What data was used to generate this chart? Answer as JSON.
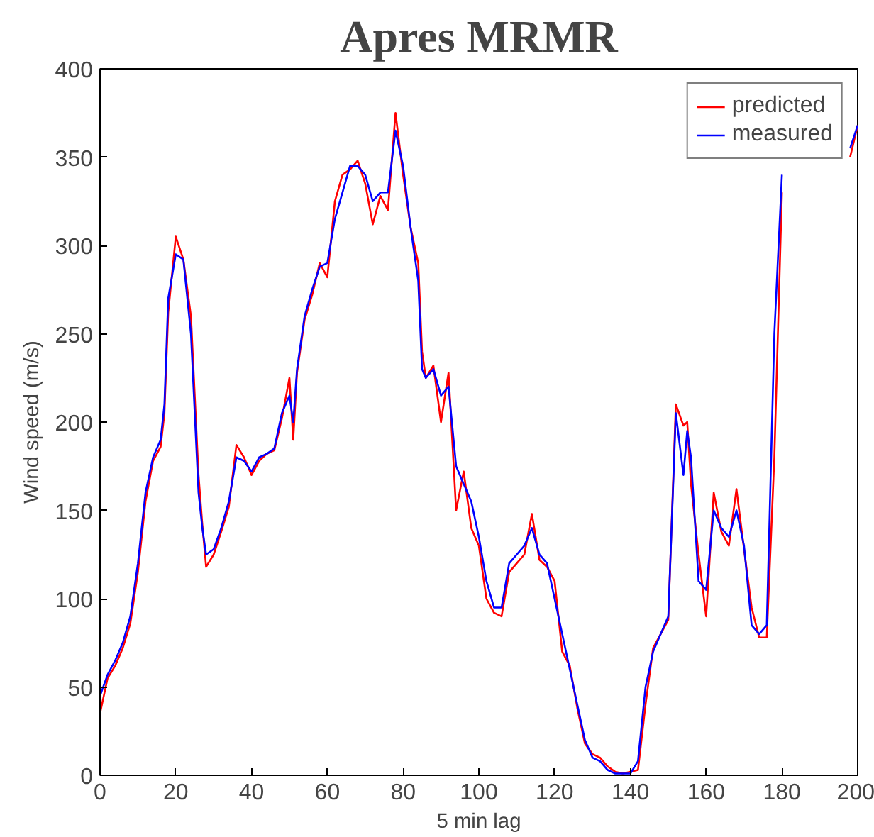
{
  "chart_data": {
    "type": "line",
    "title": "Apres MRMR",
    "xlabel": "5 min lag",
    "ylabel": "Wind speed (m/s)",
    "x": [
      0,
      2,
      4,
      6,
      8,
      10,
      12,
      14,
      16,
      17,
      18,
      20,
      22,
      24,
      26,
      27,
      28,
      30,
      32,
      34,
      36,
      38,
      40,
      42,
      44,
      46,
      48,
      50,
      51,
      52,
      54,
      56,
      58,
      60,
      62,
      64,
      66,
      68,
      70,
      72,
      74,
      76,
      78,
      80,
      82,
      84,
      85,
      86,
      88,
      90,
      92,
      94,
      96,
      98,
      100,
      102,
      104,
      106,
      108,
      110,
      112,
      114,
      116,
      118,
      120,
      122,
      124,
      126,
      128,
      130,
      132,
      134,
      136,
      138,
      140,
      142,
      144,
      146,
      148,
      150,
      152,
      154,
      155,
      156,
      158,
      160,
      162,
      164,
      166,
      168,
      170,
      172,
      174,
      176,
      178,
      180,
      182,
      190,
      198,
      200
    ],
    "series": [
      {
        "name": "predicted",
        "color": "#ff0000",
        "values": [
          35,
          55,
          62,
          72,
          86,
          115,
          155,
          178,
          186,
          205,
          262,
          305,
          292,
          260,
          170,
          142,
          118,
          125,
          138,
          152,
          187,
          180,
          170,
          178,
          182,
          184,
          202,
          225,
          190,
          228,
          258,
          272,
          290,
          282,
          325,
          340,
          343,
          348,
          335,
          312,
          328,
          320,
          375,
          340,
          310,
          290,
          240,
          225,
          232,
          200,
          228,
          150,
          172,
          140,
          130,
          100,
          92,
          90,
          115,
          120,
          125,
          148,
          122,
          118,
          110,
          70,
          62,
          38,
          18,
          12,
          10,
          5,
          2,
          1,
          2,
          3,
          40,
          72,
          80,
          88,
          210,
          198,
          200,
          165,
          125,
          90,
          160,
          138,
          130,
          162,
          128,
          95,
          78,
          78,
          180,
          330,
          null,
          null,
          350,
          368
        ]
      },
      {
        "name": "measured",
        "color": "#0000ff",
        "values": [
          45,
          57,
          65,
          75,
          90,
          120,
          160,
          180,
          190,
          210,
          270,
          295,
          292,
          250,
          160,
          140,
          125,
          128,
          140,
          155,
          180,
          178,
          172,
          180,
          182,
          185,
          205,
          215,
          200,
          230,
          260,
          275,
          288,
          290,
          315,
          330,
          345,
          345,
          340,
          325,
          330,
          330,
          365,
          345,
          310,
          280,
          230,
          225,
          230,
          215,
          220,
          175,
          165,
          155,
          135,
          110,
          95,
          95,
          120,
          125,
          130,
          140,
          125,
          120,
          100,
          80,
          60,
          40,
          20,
          10,
          8,
          3,
          1,
          1,
          1,
          8,
          50,
          70,
          80,
          90,
          205,
          170,
          195,
          180,
          110,
          105,
          150,
          140,
          135,
          150,
          130,
          85,
          80,
          85,
          250,
          340,
          null,
          null,
          355,
          368
        ]
      }
    ],
    "xlim": [
      0,
      200
    ],
    "ylim": [
      0,
      400
    ],
    "xticks": [
      0,
      20,
      40,
      60,
      80,
      100,
      120,
      140,
      160,
      180,
      200
    ],
    "yticks": [
      0,
      50,
      100,
      150,
      200,
      250,
      300,
      350,
      400
    ],
    "grid": false,
    "legend": "top right",
    "line_style": "solid",
    "marker": "none"
  }
}
